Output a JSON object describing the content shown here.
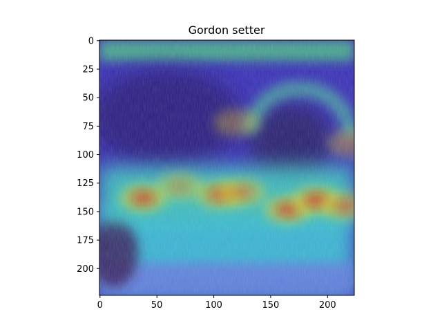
{
  "chart_data": {
    "type": "heatmap",
    "title": "Gordon setter",
    "xlabel": "",
    "ylabel": "",
    "xlim": [
      0,
      224
    ],
    "ylim": [
      224,
      0
    ],
    "x_ticks": [
      0,
      50,
      100,
      150,
      200
    ],
    "y_ticks": [
      0,
      25,
      50,
      75,
      100,
      125,
      150,
      175,
      200
    ],
    "grid": false,
    "legend": "none",
    "colormap": "jet",
    "hotspots": [
      {
        "x": 38,
        "y": 138,
        "intensity": 0.95
      },
      {
        "x": 70,
        "y": 128,
        "intensity": 0.7
      },
      {
        "x": 105,
        "y": 135,
        "intensity": 0.9
      },
      {
        "x": 125,
        "y": 133,
        "intensity": 0.8
      },
      {
        "x": 165,
        "y": 148,
        "intensity": 0.95
      },
      {
        "x": 190,
        "y": 140,
        "intensity": 0.98
      },
      {
        "x": 215,
        "y": 145,
        "intensity": 0.85
      },
      {
        "x": 120,
        "y": 72,
        "intensity": 0.6
      },
      {
        "x": 220,
        "y": 90,
        "intensity": 0.65
      }
    ],
    "background_colors": {
      "cool": "#2a2ad0",
      "mid": "#30c8d8",
      "warm": "#f0e020",
      "hot": "#d81010"
    }
  }
}
